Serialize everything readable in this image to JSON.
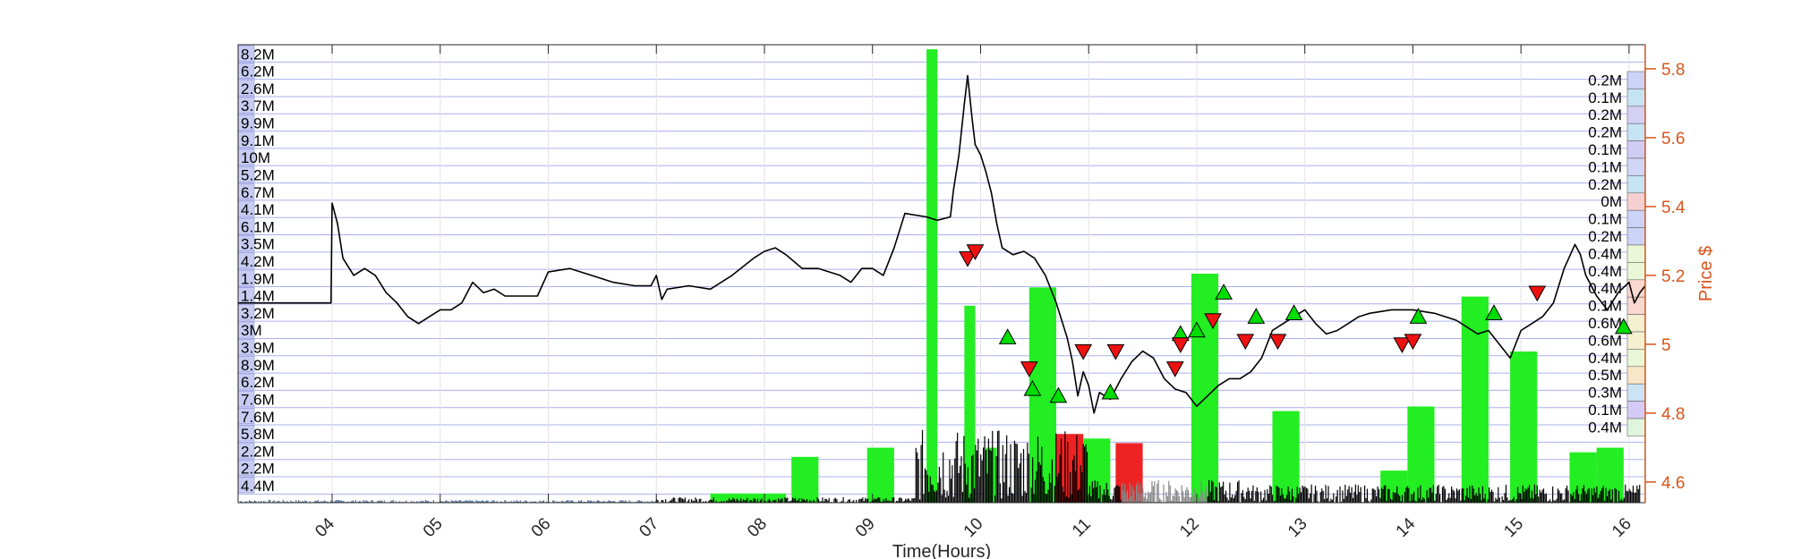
{
  "chart_data": {
    "type": "line",
    "xlabel": "Time(Hours)",
    "ylabel": "Price $",
    "x_ticks": [
      "04",
      "05",
      "06",
      "07",
      "08",
      "09",
      "10",
      "11",
      "12",
      "13",
      "14",
      "15",
      "16"
    ],
    "xlim": [
      3.13,
      16.15
    ],
    "ylim": [
      4.54,
      5.87
    ],
    "y_ticks": [
      4.6,
      4.8,
      5,
      5.2,
      5.4,
      5.6,
      5.8
    ],
    "y_tick_labels": [
      "4.6",
      "4.8",
      "5",
      "5.2",
      "5.4",
      "5.6",
      "5.8"
    ],
    "grid": true,
    "price_series": {
      "name": "",
      "color": "#000000",
      "points": [
        [
          3.13,
          5.12
        ],
        [
          3.99,
          5.12
        ],
        [
          4.0,
          5.41
        ],
        [
          4.05,
          5.35
        ],
        [
          4.1,
          5.25
        ],
        [
          4.2,
          5.2
        ],
        [
          4.3,
          5.22
        ],
        [
          4.4,
          5.2
        ],
        [
          4.5,
          5.15
        ],
        [
          4.6,
          5.12
        ],
        [
          4.7,
          5.08
        ],
        [
          4.8,
          5.06
        ],
        [
          4.9,
          5.08
        ],
        [
          5.0,
          5.1
        ],
        [
          5.1,
          5.1
        ],
        [
          5.2,
          5.12
        ],
        [
          5.3,
          5.18
        ],
        [
          5.4,
          5.15
        ],
        [
          5.5,
          5.16
        ],
        [
          5.6,
          5.14
        ],
        [
          5.7,
          5.14
        ],
        [
          5.8,
          5.14
        ],
        [
          5.9,
          5.14
        ],
        [
          6.0,
          5.21
        ],
        [
          6.2,
          5.22
        ],
        [
          6.4,
          5.2
        ],
        [
          6.6,
          5.18
        ],
        [
          6.8,
          5.17
        ],
        [
          6.95,
          5.17
        ],
        [
          7.0,
          5.2
        ],
        [
          7.05,
          5.13
        ],
        [
          7.1,
          5.16
        ],
        [
          7.3,
          5.17
        ],
        [
          7.5,
          5.16
        ],
        [
          7.7,
          5.2
        ],
        [
          7.9,
          5.25
        ],
        [
          8.0,
          5.27
        ],
        [
          8.1,
          5.28
        ],
        [
          8.2,
          5.26
        ],
        [
          8.35,
          5.22
        ],
        [
          8.5,
          5.22
        ],
        [
          8.7,
          5.2
        ],
        [
          8.8,
          5.18
        ],
        [
          8.9,
          5.22
        ],
        [
          9.0,
          5.22
        ],
        [
          9.1,
          5.2
        ],
        [
          9.2,
          5.28
        ],
        [
          9.3,
          5.38
        ],
        [
          9.5,
          5.37
        ],
        [
          9.6,
          5.36
        ],
        [
          9.72,
          5.37
        ],
        [
          9.75,
          5.45
        ],
        [
          9.8,
          5.55
        ],
        [
          9.85,
          5.7
        ],
        [
          9.88,
          5.78
        ],
        [
          9.92,
          5.66
        ],
        [
          9.95,
          5.58
        ],
        [
          10.0,
          5.55
        ],
        [
          10.05,
          5.5
        ],
        [
          10.1,
          5.44
        ],
        [
          10.15,
          5.35
        ],
        [
          10.2,
          5.28
        ],
        [
          10.3,
          5.26
        ],
        [
          10.4,
          5.27
        ],
        [
          10.5,
          5.25
        ],
        [
          10.6,
          5.2
        ],
        [
          10.7,
          5.12
        ],
        [
          10.8,
          5.02
        ],
        [
          10.85,
          4.95
        ],
        [
          10.9,
          4.85
        ],
        [
          10.95,
          4.92
        ],
        [
          11.0,
          4.88
        ],
        [
          11.05,
          4.8
        ],
        [
          11.1,
          4.86
        ],
        [
          11.2,
          4.84
        ],
        [
          11.3,
          4.9
        ],
        [
          11.4,
          4.95
        ],
        [
          11.5,
          4.98
        ],
        [
          11.6,
          4.96
        ],
        [
          11.7,
          4.9
        ],
        [
          11.8,
          4.87
        ],
        [
          11.9,
          4.86
        ],
        [
          12.0,
          4.82
        ],
        [
          12.1,
          4.85
        ],
        [
          12.2,
          4.88
        ],
        [
          12.3,
          4.9
        ],
        [
          12.4,
          4.9
        ],
        [
          12.5,
          4.92
        ],
        [
          12.6,
          4.96
        ],
        [
          12.7,
          5.04
        ],
        [
          12.8,
          5.06
        ],
        [
          12.9,
          5.08
        ],
        [
          13.0,
          5.1
        ],
        [
          13.1,
          5.06
        ],
        [
          13.2,
          5.03
        ],
        [
          13.3,
          5.04
        ],
        [
          13.4,
          5.06
        ],
        [
          13.5,
          5.08
        ],
        [
          13.6,
          5.09
        ],
        [
          13.8,
          5.1
        ],
        [
          14.0,
          5.1
        ],
        [
          14.2,
          5.09
        ],
        [
          14.4,
          5.07
        ],
        [
          14.5,
          5.05
        ],
        [
          14.6,
          5.03
        ],
        [
          14.7,
          5.04
        ],
        [
          14.8,
          5.0
        ],
        [
          14.9,
          4.96
        ],
        [
          15.0,
          5.04
        ],
        [
          15.1,
          5.06
        ],
        [
          15.2,
          5.08
        ],
        [
          15.3,
          5.12
        ],
        [
          15.4,
          5.22
        ],
        [
          15.5,
          5.29
        ],
        [
          15.55,
          5.26
        ],
        [
          15.6,
          5.2
        ],
        [
          15.7,
          5.14
        ],
        [
          15.8,
          5.1
        ],
        [
          15.9,
          5.15
        ],
        [
          16.0,
          5.18
        ],
        [
          16.05,
          5.12
        ],
        [
          16.1,
          5.15
        ],
        [
          16.15,
          5.17
        ]
      ]
    },
    "buy_markers": {
      "color": "#00dd00",
      "shape": "triangle-up",
      "points": [
        [
          10.25,
          5.02
        ],
        [
          10.48,
          4.87
        ],
        [
          10.72,
          4.85
        ],
        [
          11.2,
          4.86
        ],
        [
          11.85,
          5.03
        ],
        [
          12.0,
          5.04
        ],
        [
          12.25,
          5.15
        ],
        [
          12.55,
          5.08
        ],
        [
          12.9,
          5.09
        ],
        [
          14.05,
          5.08
        ],
        [
          14.75,
          5.09
        ],
        [
          15.95,
          5.05
        ]
      ]
    },
    "sell_markers": {
      "color": "#ee1111",
      "shape": "triangle-down",
      "points": [
        [
          9.88,
          5.25
        ],
        [
          9.95,
          5.27
        ],
        [
          10.45,
          4.93
        ],
        [
          10.95,
          4.98
        ],
        [
          11.25,
          4.98
        ],
        [
          11.8,
          4.93
        ],
        [
          11.85,
          5.0
        ],
        [
          12.15,
          5.07
        ],
        [
          12.45,
          5.01
        ],
        [
          12.75,
          5.01
        ],
        [
          13.9,
          5.0
        ],
        [
          14.0,
          5.01
        ],
        [
          15.15,
          5.15
        ]
      ]
    },
    "volume_bars": {
      "green": "#22ee22",
      "red": "#ee2222",
      "green_bars": [
        [
          7.5,
          8.2,
          0.02
        ],
        [
          8.25,
          8.5,
          0.1
        ],
        [
          8.95,
          9.2,
          0.12
        ],
        [
          9.5,
          9.6,
          0.99
        ],
        [
          9.85,
          9.95,
          0.43
        ],
        [
          10.05,
          10.15,
          0.12
        ],
        [
          10.45,
          10.7,
          0.47
        ],
        [
          10.95,
          11.2,
          0.14
        ],
        [
          11.95,
          12.2,
          0.5
        ],
        [
          12.7,
          12.95,
          0.2
        ],
        [
          13.7,
          13.95,
          0.07
        ],
        [
          13.95,
          14.2,
          0.21
        ],
        [
          14.45,
          14.7,
          0.45
        ],
        [
          14.9,
          15.15,
          0.33
        ],
        [
          15.45,
          15.7,
          0.11
        ],
        [
          15.7,
          15.95,
          0.12
        ]
      ],
      "red_bars": [
        [
          10.7,
          10.95,
          0.15
        ],
        [
          11.25,
          11.5,
          0.13
        ]
      ]
    },
    "volume_profile_left": [
      "8.2M",
      "6.2M",
      "2.6M",
      "3.7M",
      "9.9M",
      "9.1M",
      "10M",
      "5.2M",
      "6.7M",
      "4.1M",
      "6.1M",
      "3.5M",
      "4.2M",
      "1.9M",
      "1.4M",
      "3.2M",
      "3M",
      "3.9M",
      "8.9M",
      "6.2M",
      "7.6M",
      "7.6M",
      "5.8M",
      "2.2M",
      "2.2M",
      "4.4M"
    ],
    "volume_profile_right": [
      "0.2M",
      "0.1M",
      "0.2M",
      "0.2M",
      "0.1M",
      "0.1M",
      "0.2M",
      "0M",
      "0.1M",
      "0.2M",
      "0.4M",
      "0.4M",
      "0.4M",
      "0.1M",
      "0.6M",
      "0.6M",
      "0.4M",
      "0.5M",
      "0.3M",
      "0.1M",
      "0.4M"
    ]
  }
}
